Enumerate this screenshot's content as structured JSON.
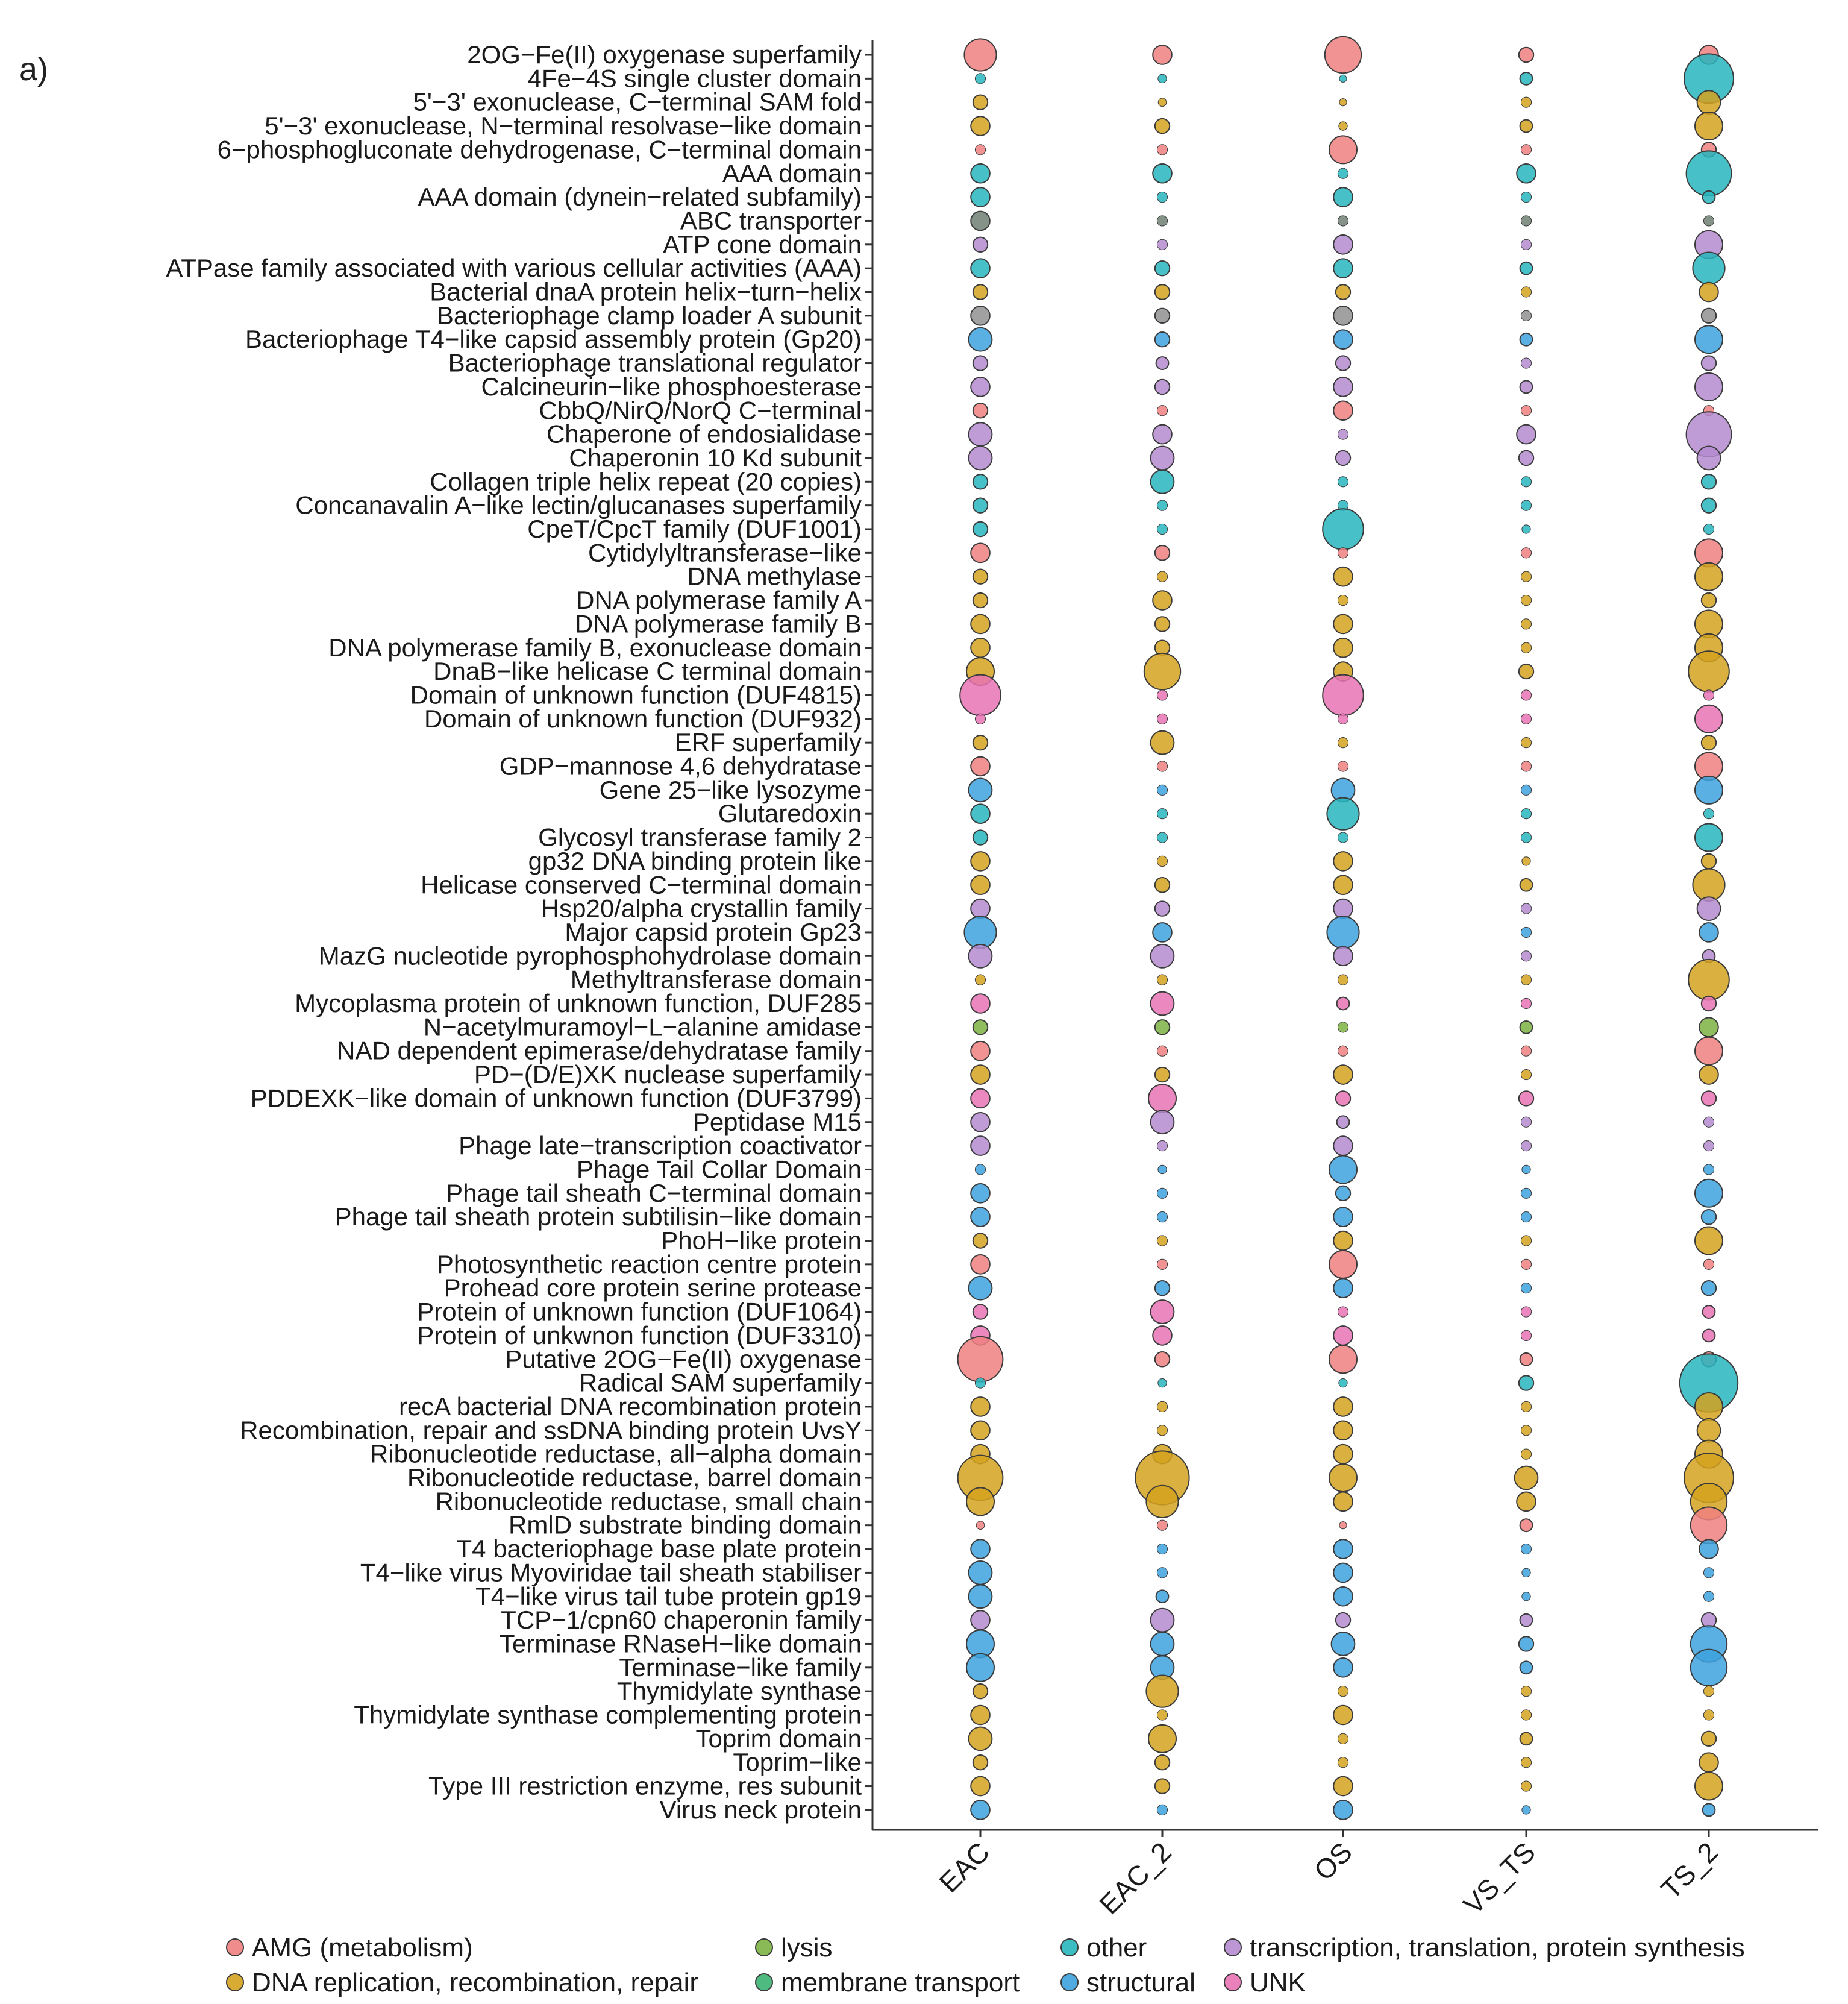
{
  "panel_label": "a)",
  "chart_data": {
    "type": "bubble",
    "title": "",
    "xlabel": "",
    "ylabel": "",
    "samples": [
      "EAC",
      "EAC_2",
      "OS",
      "VS_TS",
      "TS_2"
    ],
    "size_unit": "relative abundance (unlabeled, 1-10 scale)",
    "categories": {
      "AMG (metabolism)": "#F08080",
      "DNA replication, recombination, repair": "#D4A21E",
      "lysis": "#7CB342",
      "membrane transport": "#3CB371",
      "other": "#27B5BD",
      "structural": "#3DA2DE",
      "transcription, translation, protein synthesis": "#B58BD0",
      "UNK": "#E873B4"
    },
    "category_fill_override": {
      "other_dark": "#6E7F73",
      "other_grey": "#909090"
    },
    "legend": {
      "position": "bottom",
      "rows": [
        [
          "AMG (metabolism)",
          "lysis",
          "other",
          "transcription, translation, protein synthesis"
        ],
        [
          "DNA replication, recombination, repair",
          "membrane transport",
          "structural",
          "UNK"
        ]
      ]
    },
    "rows": [
      {
        "label": "2OG−Fe(II) oxygenase superfamily",
        "cat": "AMG (metabolism)",
        "sizes": [
          6,
          3,
          7,
          2,
          3
        ]
      },
      {
        "label": "4Fe−4S single cluster domain",
        "cat": "other",
        "sizes": [
          1,
          0.6,
          0.3,
          1.5,
          10
        ]
      },
      {
        "label": "5'−3' exonuclease, C−terminal SAM fold",
        "cat": "DNA replication, recombination, repair",
        "sizes": [
          2,
          0.5,
          0.3,
          1,
          4
        ]
      },
      {
        "label": "5'−3' exonuclease, N−terminal resolvase−like domain",
        "cat": "DNA replication, recombination, repair",
        "sizes": [
          3,
          2,
          0.6,
          1.5,
          5
        ]
      },
      {
        "label": "6−phosphogluconate dehydrogenase, C−terminal domain",
        "cat": "AMG (metabolism)",
        "sizes": [
          1,
          1,
          5,
          1,
          2
        ]
      },
      {
        "label": "AAA domain",
        "cat": "other",
        "sizes": [
          3,
          3,
          1,
          3,
          9
        ]
      },
      {
        "label": "AAA domain (dynein−related subfamily)",
        "cat": "other",
        "sizes": [
          3,
          1,
          3,
          1,
          1.5
        ]
      },
      {
        "label": "ABC transporter",
        "cat": "other_dark",
        "sizes": [
          3,
          1,
          1,
          1,
          1
        ]
      },
      {
        "label": "ATP cone domain",
        "cat": "transcription, translation, protein synthesis",
        "sizes": [
          2,
          1,
          3,
          1,
          5
        ]
      },
      {
        "label": "ATPase family associated with various cellular activities (AAA)",
        "cat": "other",
        "sizes": [
          3,
          2,
          3,
          1.5,
          6
        ]
      },
      {
        "label": "Bacterial dnaA protein helix−turn−helix",
        "cat": "DNA replication, recombination, repair",
        "sizes": [
          2,
          2,
          2,
          1,
          3
        ]
      },
      {
        "label": "Bacteriophage clamp loader A subunit",
        "cat": "other_grey",
        "sizes": [
          3,
          2,
          3,
          1,
          2
        ]
      },
      {
        "label": "Bacteriophage T4−like capsid assembly protein (Gp20)",
        "cat": "structural",
        "sizes": [
          4,
          2,
          3,
          1.5,
          5
        ]
      },
      {
        "label": "Bacteriophage translational regulator",
        "cat": "transcription, translation, protein synthesis",
        "sizes": [
          2,
          1.5,
          2,
          1,
          2
        ]
      },
      {
        "label": "Calcineurin−like phosphoesterase",
        "cat": "transcription, translation, protein synthesis",
        "sizes": [
          3,
          2,
          3,
          1.5,
          5
        ]
      },
      {
        "label": "CbbQ/NirQ/NorQ C−terminal",
        "cat": "AMG (metabolism)",
        "sizes": [
          2,
          1,
          3,
          1,
          1
        ]
      },
      {
        "label": "Chaperone of endosialidase",
        "cat": "transcription, translation, protein synthesis",
        "sizes": [
          4,
          3,
          1,
          3,
          9
        ]
      },
      {
        "label": "Chaperonin 10 Kd subunit",
        "cat": "transcription, translation, protein synthesis",
        "sizes": [
          4,
          4,
          2,
          2,
          4
        ]
      },
      {
        "label": "Collagen triple helix repeat (20 copies)",
        "cat": "other",
        "sizes": [
          2,
          4,
          1,
          1,
          2
        ]
      },
      {
        "label": "Concanavalin A−like lectin/glucanases superfamily",
        "cat": "other",
        "sizes": [
          2,
          1,
          1,
          1,
          2
        ]
      },
      {
        "label": "CpeT/CpcT family (DUF1001)",
        "cat": "other",
        "sizes": [
          2,
          1,
          8,
          0.6,
          1
        ]
      },
      {
        "label": "Cytidylyltransferase−like",
        "cat": "AMG (metabolism)",
        "sizes": [
          3,
          2,
          1,
          1,
          5
        ]
      },
      {
        "label": "DNA methylase",
        "cat": "DNA replication, recombination, repair",
        "sizes": [
          2,
          1,
          3,
          1,
          5
        ]
      },
      {
        "label": "DNA polymerase family A",
        "cat": "DNA replication, recombination, repair",
        "sizes": [
          2,
          3,
          1,
          1,
          2
        ]
      },
      {
        "label": "DNA polymerase family B",
        "cat": "DNA replication, recombination, repair",
        "sizes": [
          3,
          2,
          3,
          1,
          5
        ]
      },
      {
        "label": "DNA polymerase family B, exonuclease domain",
        "cat": "DNA replication, recombination, repair",
        "sizes": [
          3,
          2,
          3,
          1,
          5
        ]
      },
      {
        "label": "DnaB−like helicase C terminal domain",
        "cat": "DNA replication, recombination, repair",
        "sizes": [
          5,
          7,
          3,
          2,
          8
        ]
      },
      {
        "label": "Domain of unknown function (DUF4815)",
        "cat": "UNK",
        "sizes": [
          8,
          1,
          8,
          1,
          1
        ]
      },
      {
        "label": "Domain of unknown function (DUF932)",
        "cat": "UNK",
        "sizes": [
          1,
          1,
          1,
          1,
          5
        ]
      },
      {
        "label": "ERF superfamily",
        "cat": "DNA replication, recombination, repair",
        "sizes": [
          2,
          4,
          1,
          1,
          2
        ]
      },
      {
        "label": "GDP−mannose 4,6 dehydratase",
        "cat": "AMG (metabolism)",
        "sizes": [
          3,
          1,
          1,
          1,
          5
        ]
      },
      {
        "label": "Gene 25−like lysozyme",
        "cat": "structural",
        "sizes": [
          4,
          1,
          4,
          1,
          5
        ]
      },
      {
        "label": "Glutaredoxin",
        "cat": "other",
        "sizes": [
          3,
          1,
          6,
          1,
          1
        ]
      },
      {
        "label": "Glycosyl transferase family 2",
        "cat": "other",
        "sizes": [
          2,
          1,
          1,
          1,
          5
        ]
      },
      {
        "label": "gp32 DNA binding protein like",
        "cat": "DNA replication, recombination, repair",
        "sizes": [
          3,
          1,
          3,
          0.6,
          2
        ]
      },
      {
        "label": "Helicase conserved C−terminal domain",
        "cat": "DNA replication, recombination, repair",
        "sizes": [
          3,
          2,
          3,
          1.5,
          6
        ]
      },
      {
        "label": "Hsp20/alpha crystallin family",
        "cat": "transcription, translation, protein synthesis",
        "sizes": [
          3,
          2,
          3,
          1,
          4
        ]
      },
      {
        "label": "Major capsid protein Gp23",
        "cat": "structural",
        "sizes": [
          6,
          3,
          6,
          1,
          3
        ]
      },
      {
        "label": "MazG nucleotide pyrophosphohydrolase domain",
        "cat": "transcription, translation, protein synthesis",
        "sizes": [
          4,
          4,
          3,
          1,
          1.5
        ]
      },
      {
        "label": "Methyltransferase domain",
        "cat": "DNA replication, recombination, repair",
        "sizes": [
          1,
          1,
          1,
          1,
          8
        ]
      },
      {
        "label": "Mycoplasma protein of unknown function, DUF285",
        "cat": "UNK",
        "sizes": [
          3,
          4,
          1.5,
          1,
          2
        ]
      },
      {
        "label": "N−acetylmuramoyl−L−alanine amidase",
        "cat": "lysis",
        "sizes": [
          2,
          2,
          1,
          1.5,
          3
        ]
      },
      {
        "label": "NAD dependent epimerase/dehydratase family",
        "cat": "AMG (metabolism)",
        "sizes": [
          3,
          1,
          1,
          1,
          5
        ]
      },
      {
        "label": "PD−(D/E)XK nuclease superfamily",
        "cat": "DNA replication, recombination, repair",
        "sizes": [
          3,
          2,
          3,
          1,
          3
        ]
      },
      {
        "label": "PDDEXK−like domain of unknown function (DUF3799)",
        "cat": "UNK",
        "sizes": [
          3,
          5,
          2,
          2,
          2
        ]
      },
      {
        "label": "Peptidase M15",
        "cat": "transcription, translation, protein synthesis",
        "sizes": [
          3,
          4,
          1.5,
          1,
          1
        ]
      },
      {
        "label": "Phage late−transcription coactivator",
        "cat": "transcription, translation, protein synthesis",
        "sizes": [
          3,
          1,
          3,
          1,
          1
        ]
      },
      {
        "label": "Phage Tail Collar Domain",
        "cat": "structural",
        "sizes": [
          1,
          0.6,
          5,
          0.6,
          1
        ]
      },
      {
        "label": "Phage tail sheath C−terminal domain",
        "cat": "structural",
        "sizes": [
          3,
          1,
          2,
          1,
          5
        ]
      },
      {
        "label": "Phage tail sheath protein subtilisin−like domain",
        "cat": "structural",
        "sizes": [
          3,
          1,
          3,
          1,
          2
        ]
      },
      {
        "label": "PhoH−like protein",
        "cat": "DNA replication, recombination, repair",
        "sizes": [
          2,
          1,
          3,
          1,
          5
        ]
      },
      {
        "label": "Photosynthetic reaction centre protein",
        "cat": "AMG (metabolism)",
        "sizes": [
          3,
          1,
          5,
          1,
          1
        ]
      },
      {
        "label": "Prohead core protein serine protease",
        "cat": "structural",
        "sizes": [
          4,
          2,
          3,
          1,
          2
        ]
      },
      {
        "label": "Protein of unknown function (DUF1064)",
        "cat": "UNK",
        "sizes": [
          2,
          4,
          1,
          1,
          1.5
        ]
      },
      {
        "label": "Protein of unkwnon function (DUF3310)",
        "cat": "UNK",
        "sizes": [
          3,
          3,
          3,
          1,
          1.5
        ]
      },
      {
        "label": "Putative 2OG−Fe(II) oxygenase",
        "cat": "AMG (metabolism)",
        "sizes": [
          9,
          2,
          5,
          1.5,
          2
        ]
      },
      {
        "label": "Radical SAM superfamily",
        "cat": "other",
        "sizes": [
          1,
          0.6,
          0.6,
          2,
          12
        ]
      },
      {
        "label": "recA bacterial DNA recombination protein",
        "cat": "DNA replication, recombination, repair",
        "sizes": [
          3,
          1,
          3,
          1,
          5
        ]
      },
      {
        "label": "Recombination, repair and ssDNA binding protein UvsY",
        "cat": "DNA replication, recombination, repair",
        "sizes": [
          3,
          1,
          3,
          1,
          4
        ]
      },
      {
        "label": "Ribonucleotide reductase, all−alpha domain",
        "cat": "DNA replication, recombination, repair",
        "sizes": [
          3,
          3,
          3,
          1,
          5
        ]
      },
      {
        "label": "Ribonucleotide reductase, barrel domain",
        "cat": "DNA replication, recombination, repair",
        "sizes": [
          9,
          11,
          5,
          4,
          10
        ]
      },
      {
        "label": "Ribonucleotide reductase, small chain",
        "cat": "DNA replication, recombination, repair",
        "sizes": [
          5,
          6,
          3,
          3,
          7
        ]
      },
      {
        "label": "RmlD substrate binding domain",
        "cat": "AMG (metabolism)",
        "sizes": [
          0.5,
          1,
          0.3,
          1.5,
          7
        ]
      },
      {
        "label": "T4 bacteriophage base plate protein",
        "cat": "structural",
        "sizes": [
          3,
          1,
          3,
          1,
          3
        ]
      },
      {
        "label": "T4−like virus Myoviridae tail sheath stabiliser",
        "cat": "structural",
        "sizes": [
          4,
          1,
          3,
          0.6,
          1
        ]
      },
      {
        "label": "T4−like virus tail tube protein gp19",
        "cat": "structural",
        "sizes": [
          4,
          1.5,
          3,
          0.6,
          1
        ]
      },
      {
        "label": "TCP−1/cpn60 chaperonin family",
        "cat": "transcription, translation, protein synthesis",
        "sizes": [
          3,
          4,
          2,
          1.5,
          2
        ]
      },
      {
        "label": "Terminase RNaseH−like domain",
        "cat": "structural",
        "sizes": [
          5,
          4,
          4,
          2,
          7
        ]
      },
      {
        "label": "Terminase−like family",
        "cat": "structural",
        "sizes": [
          5,
          4,
          3,
          1.5,
          7
        ]
      },
      {
        "label": "Thymidylate synthase",
        "cat": "DNA replication, recombination, repair",
        "sizes": [
          2,
          6,
          1,
          1,
          1
        ]
      },
      {
        "label": "Thymidylate synthase complementing protein",
        "cat": "DNA replication, recombination, repair",
        "sizes": [
          3,
          1,
          3,
          1,
          1
        ]
      },
      {
        "label": "Toprim domain",
        "cat": "DNA replication, recombination, repair",
        "sizes": [
          4,
          5,
          1,
          1.5,
          2
        ]
      },
      {
        "label": "Toprim−like",
        "cat": "DNA replication, recombination, repair",
        "sizes": [
          2,
          2,
          1,
          1,
          3
        ]
      },
      {
        "label": "Type III restriction enzyme, res subunit",
        "cat": "DNA replication, recombination, repair",
        "sizes": [
          3,
          2,
          3,
          1,
          5
        ]
      },
      {
        "label": "Virus neck protein",
        "cat": "structural",
        "sizes": [
          3,
          1,
          3,
          0.6,
          1.5
        ]
      }
    ]
  }
}
